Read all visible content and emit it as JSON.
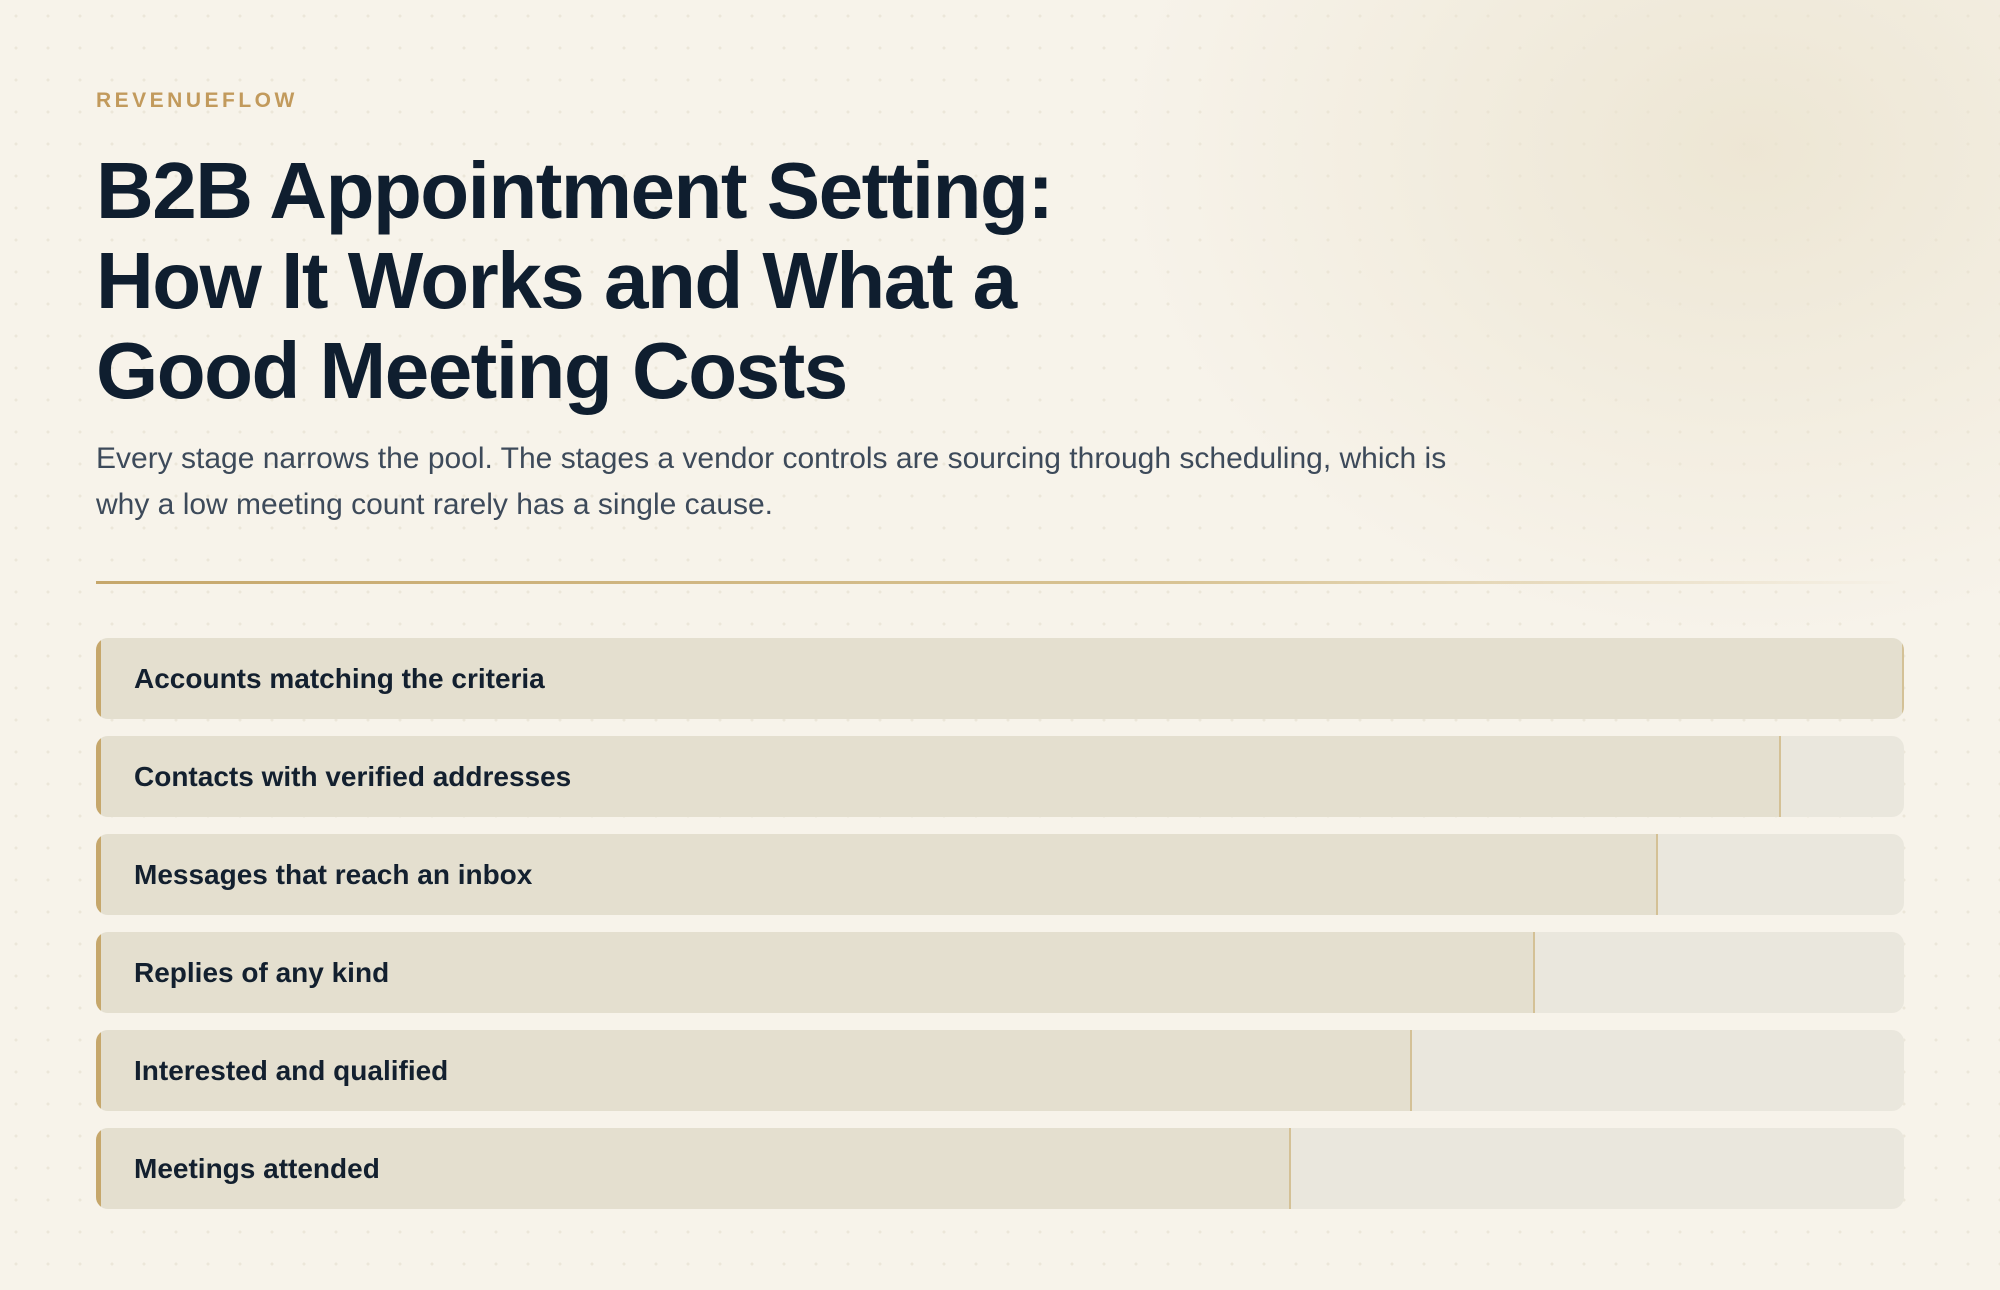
{
  "brand": "REVENUEFLOW",
  "title_lines": [
    "B2B Appointment Setting:",
    "How It Works and What a",
    "Good Meeting Costs"
  ],
  "subtitle": "Every stage narrows the pool. The stages a vendor controls are sourcing through scheduling, which is why a low meeting count rarely has a single cause.",
  "colors": {
    "accent": "#c6a76b",
    "brand": "#c29a5c",
    "title": "#0f1e2f",
    "bar_fill": "#e4dfcf",
    "bar_track": "#eae7dd"
  },
  "stages": [
    {
      "label": "Accounts matching the criteria",
      "fill_fraction": 1.0
    },
    {
      "label": "Contacts with verified addresses",
      "fill_fraction": 0.932
    },
    {
      "label": "Messages that reach an inbox",
      "fill_fraction": 0.864
    },
    {
      "label": "Replies of any kind",
      "fill_fraction": 0.796
    },
    {
      "label": "Interested and qualified",
      "fill_fraction": 0.728
    },
    {
      "label": "Meetings attended",
      "fill_fraction": 0.661
    }
  ]
}
